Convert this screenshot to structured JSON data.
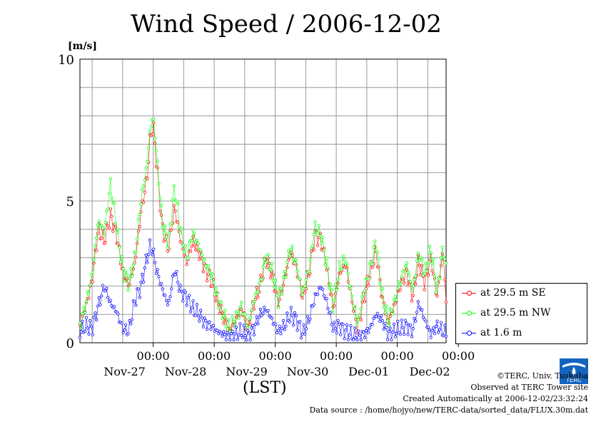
{
  "title": "Wind Speed / 2006-12-02",
  "unit_label": "[m/s]",
  "lst_label": "(LST)",
  "credits": {
    "copyright": "©TERC, Univ. Tsukuba",
    "site": "Observed at TERC Tower site",
    "created": "Created Automatically at 2006-12-02/23:32:24",
    "source": "Data source : /home/hojyo/new/TERC-data/sorted_data/FLUX.30m.dat"
  },
  "logo_text": "TERC",
  "chart_data": {
    "type": "line",
    "title": "Wind Speed / 2006-12-02",
    "ylabel": "[m/s]",
    "xlabel": "(LST)",
    "ylim": [
      0,
      10
    ],
    "y_ticks": [
      "0",
      "5",
      "10"
    ],
    "xlim_days": [
      -1.2,
      4.8
    ],
    "x_ticks": [
      {
        "time": "00:00",
        "date": "Nov-27"
      },
      {
        "time": "00:00",
        "date": "Nov-28"
      },
      {
        "time": "00:00",
        "date": "Nov-29"
      },
      {
        "time": "00:00",
        "date": "Nov-30"
      },
      {
        "time": "00:00",
        "date": "Dec-01"
      },
      {
        "time": "00:00",
        "date": "Dec-02"
      }
    ],
    "grid": true,
    "legend_position": "bottom-right, outside plot",
    "series": [
      {
        "name": "at 29.5 m SE",
        "color": "#ff0000",
        "keypoints": [
          [
            -1.2,
            0.6
          ],
          [
            -1.1,
            1.3
          ],
          [
            -1.0,
            2.2
          ],
          [
            -0.9,
            4.0
          ],
          [
            -0.8,
            3.6
          ],
          [
            -0.7,
            4.5
          ],
          [
            -0.6,
            3.8
          ],
          [
            -0.5,
            2.5
          ],
          [
            -0.4,
            2.0
          ],
          [
            -0.3,
            2.8
          ],
          [
            -0.2,
            4.6
          ],
          [
            -0.1,
            5.8
          ],
          [
            -0.05,
            7.2
          ],
          [
            0.0,
            7.7
          ],
          [
            0.05,
            6.5
          ],
          [
            0.15,
            4.0
          ],
          [
            0.25,
            3.3
          ],
          [
            0.35,
            4.8
          ],
          [
            0.45,
            3.6
          ],
          [
            0.55,
            2.8
          ],
          [
            0.65,
            3.6
          ],
          [
            0.75,
            3.2
          ],
          [
            0.85,
            2.6
          ],
          [
            0.95,
            2.2
          ],
          [
            1.05,
            1.5
          ],
          [
            1.15,
            0.9
          ],
          [
            1.25,
            0.4
          ],
          [
            1.35,
            0.8
          ],
          [
            1.45,
            1.2
          ],
          [
            1.55,
            0.5
          ],
          [
            1.65,
            1.4
          ],
          [
            1.75,
            2.0
          ],
          [
            1.85,
            3.0
          ],
          [
            1.95,
            2.4
          ],
          [
            2.05,
            1.4
          ],
          [
            2.15,
            2.2
          ],
          [
            2.25,
            3.2
          ],
          [
            2.35,
            2.6
          ],
          [
            2.45,
            1.6
          ],
          [
            2.55,
            2.4
          ],
          [
            2.65,
            3.8
          ],
          [
            2.75,
            3.6
          ],
          [
            2.85,
            2.6
          ],
          [
            2.95,
            1.2
          ],
          [
            3.05,
            2.4
          ],
          [
            3.15,
            2.8
          ],
          [
            3.25,
            1.6
          ],
          [
            3.35,
            0.5
          ],
          [
            3.45,
            1.6
          ],
          [
            3.55,
            2.4
          ],
          [
            3.65,
            3.3
          ],
          [
            3.75,
            1.6
          ],
          [
            3.85,
            0.7
          ],
          [
            3.95,
            1.3
          ],
          [
            4.05,
            2.0
          ],
          [
            4.15,
            2.5
          ],
          [
            4.25,
            1.6
          ],
          [
            4.35,
            2.9
          ],
          [
            4.45,
            2.1
          ],
          [
            4.55,
            3.0
          ],
          [
            4.65,
            1.6
          ],
          [
            4.75,
            3.3
          ],
          [
            4.8,
            1.4
          ]
        ]
      },
      {
        "name": "at 29.5 m NW",
        "color": "#00ff00",
        "keypoints": [
          [
            -1.2,
            0.6
          ],
          [
            -1.1,
            1.4
          ],
          [
            -1.0,
            2.4
          ],
          [
            -0.9,
            4.3
          ],
          [
            -0.8,
            3.9
          ],
          [
            -0.7,
            5.6
          ],
          [
            -0.6,
            4.1
          ],
          [
            -0.5,
            2.6
          ],
          [
            -0.4,
            2.1
          ],
          [
            -0.3,
            3.0
          ],
          [
            -0.2,
            5.0
          ],
          [
            -0.1,
            6.3
          ],
          [
            -0.05,
            7.5
          ],
          [
            0.0,
            8.0
          ],
          [
            0.05,
            6.8
          ],
          [
            0.15,
            4.2
          ],
          [
            0.25,
            3.5
          ],
          [
            0.35,
            5.5
          ],
          [
            0.45,
            3.9
          ],
          [
            0.55,
            3.0
          ],
          [
            0.65,
            3.9
          ],
          [
            0.75,
            3.4
          ],
          [
            0.85,
            2.8
          ],
          [
            0.95,
            2.4
          ],
          [
            1.05,
            1.6
          ],
          [
            1.15,
            1.0
          ],
          [
            1.25,
            0.45
          ],
          [
            1.35,
            0.85
          ],
          [
            1.45,
            1.3
          ],
          [
            1.55,
            0.55
          ],
          [
            1.65,
            1.5
          ],
          [
            1.75,
            2.1
          ],
          [
            1.85,
            3.1
          ],
          [
            1.95,
            2.5
          ],
          [
            2.05,
            1.5
          ],
          [
            2.15,
            2.3
          ],
          [
            2.25,
            3.4
          ],
          [
            2.35,
            2.7
          ],
          [
            2.45,
            1.7
          ],
          [
            2.55,
            2.6
          ],
          [
            2.65,
            4.1
          ],
          [
            2.75,
            3.8
          ],
          [
            2.85,
            2.7
          ],
          [
            2.95,
            1.3
          ],
          [
            3.05,
            2.6
          ],
          [
            3.15,
            3.0
          ],
          [
            3.25,
            1.7
          ],
          [
            3.35,
            0.6
          ],
          [
            3.45,
            1.8
          ],
          [
            3.55,
            2.6
          ],
          [
            3.65,
            3.6
          ],
          [
            3.75,
            1.7
          ],
          [
            3.85,
            0.75
          ],
          [
            3.95,
            1.4
          ],
          [
            4.05,
            2.2
          ],
          [
            4.15,
            2.8
          ],
          [
            4.25,
            1.8
          ],
          [
            4.35,
            3.2
          ],
          [
            4.45,
            2.4
          ],
          [
            4.55,
            3.3
          ],
          [
            4.65,
            1.8
          ],
          [
            4.75,
            3.4
          ],
          [
            4.8,
            2.6
          ]
        ]
      },
      {
        "name": "at 1.6 m",
        "color": "#0000ff",
        "keypoints": [
          [
            -1.2,
            0.4
          ],
          [
            -1.1,
            0.6
          ],
          [
            -1.0,
            0.5
          ],
          [
            -0.9,
            1.3
          ],
          [
            -0.8,
            2.0
          ],
          [
            -0.7,
            1.4
          ],
          [
            -0.6,
            1.1
          ],
          [
            -0.5,
            0.5
          ],
          [
            -0.4,
            0.4
          ],
          [
            -0.3,
            1.5
          ],
          [
            -0.2,
            2.0
          ],
          [
            -0.1,
            3.0
          ],
          [
            -0.05,
            3.4
          ],
          [
            0.0,
            3.2
          ],
          [
            0.05,
            2.6
          ],
          [
            0.15,
            1.9
          ],
          [
            0.25,
            1.3
          ],
          [
            0.35,
            2.6
          ],
          [
            0.45,
            1.8
          ],
          [
            0.55,
            1.6
          ],
          [
            0.65,
            1.2
          ],
          [
            0.75,
            1.0
          ],
          [
            0.85,
            0.7
          ],
          [
            0.95,
            0.6
          ],
          [
            1.05,
            0.4
          ],
          [
            1.15,
            0.3
          ],
          [
            1.25,
            0.2
          ],
          [
            1.35,
            0.3
          ],
          [
            1.45,
            0.4
          ],
          [
            1.55,
            0.2
          ],
          [
            1.65,
            0.5
          ],
          [
            1.75,
            1.0
          ],
          [
            1.85,
            1.2
          ],
          [
            1.95,
            0.8
          ],
          [
            2.05,
            0.4
          ],
          [
            2.15,
            0.6
          ],
          [
            2.25,
            1.0
          ],
          [
            2.35,
            0.8
          ],
          [
            2.45,
            0.3
          ],
          [
            2.55,
            0.8
          ],
          [
            2.65,
            1.6
          ],
          [
            2.75,
            2.0
          ],
          [
            2.85,
            1.4
          ],
          [
            2.95,
            0.5
          ],
          [
            3.05,
            0.6
          ],
          [
            3.15,
            0.4
          ],
          [
            3.25,
            0.3
          ],
          [
            3.35,
            0.2
          ],
          [
            3.45,
            0.3
          ],
          [
            3.55,
            0.5
          ],
          [
            3.65,
            1.0
          ],
          [
            3.75,
            0.8
          ],
          [
            3.85,
            0.3
          ],
          [
            3.95,
            0.4
          ],
          [
            4.05,
            0.5
          ],
          [
            4.15,
            0.6
          ],
          [
            4.25,
            0.4
          ],
          [
            4.35,
            1.4
          ],
          [
            4.45,
            0.8
          ],
          [
            4.55,
            0.3
          ],
          [
            4.65,
            0.6
          ],
          [
            4.75,
            0.4
          ],
          [
            4.8,
            0.3
          ]
        ]
      }
    ]
  }
}
